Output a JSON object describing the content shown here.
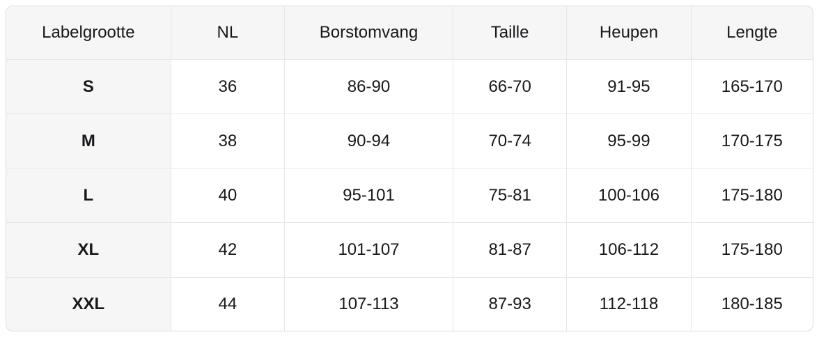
{
  "chart_data": {
    "type": "table",
    "columns": [
      "Labelgrootte",
      "NL",
      "Borstomvang",
      "Taille",
      "Heupen",
      "Lengte"
    ],
    "rows": [
      [
        "S",
        "36",
        "86-90",
        "66-70",
        "91-95",
        "165-170"
      ],
      [
        "M",
        "38",
        "90-94",
        "70-74",
        "95-99",
        "170-175"
      ],
      [
        "L",
        "40",
        "95-101",
        "75-81",
        "100-106",
        "175-180"
      ],
      [
        "XL",
        "42",
        "101-107",
        "81-87",
        "106-112",
        "175-180"
      ],
      [
        "XXL",
        "44",
        "107-113",
        "87-93",
        "112-118",
        "180-185"
      ]
    ],
    "layout": {
      "grid": "on",
      "header_row_shaded": true,
      "first_column_shaded": true
    }
  },
  "colors": {
    "header_background": "#f6f6f7",
    "row_label_background": "#f6f6f7",
    "cell_background": "#ffffff",
    "border": "#e7e7ea",
    "outer_border": "#dcdce0",
    "text": "#18181b",
    "page_background": "#ffffff"
  }
}
